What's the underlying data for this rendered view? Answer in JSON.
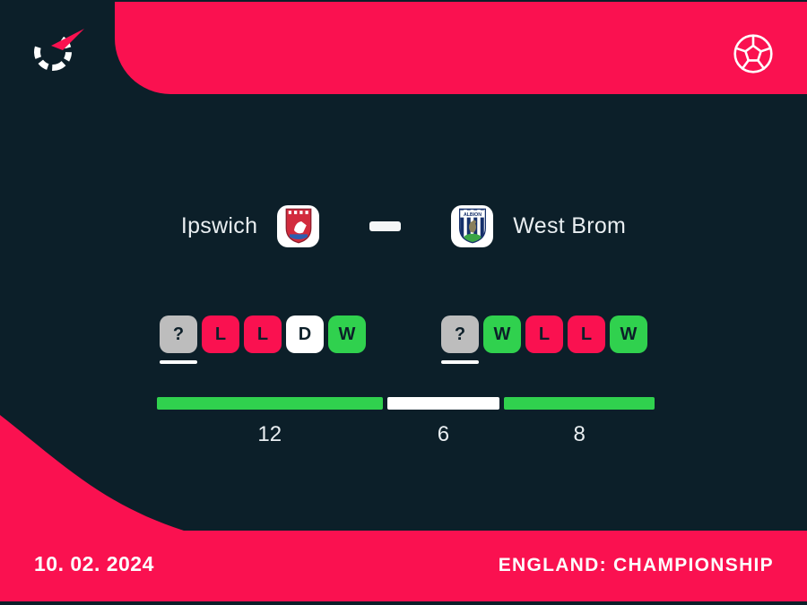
{
  "colors": {
    "pink": "#fa1150",
    "navy": "#0c1f29",
    "green": "#30d14e",
    "gray": "#bdbdbd",
    "white": "#ffffff"
  },
  "header": {
    "logo_icon": "flashscore-spinner-logo",
    "sport_icon": "football-ball"
  },
  "match": {
    "home_name": "Ipswich",
    "away_name": "West Brom"
  },
  "form": {
    "home": [
      {
        "label": "?",
        "result": "unknown",
        "upcoming": true
      },
      {
        "label": "L",
        "result": "loss"
      },
      {
        "label": "L",
        "result": "loss"
      },
      {
        "label": "D",
        "result": "draw"
      },
      {
        "label": "W",
        "result": "win"
      }
    ],
    "away": [
      {
        "label": "?",
        "result": "unknown",
        "upcoming": true
      },
      {
        "label": "W",
        "result": "win"
      },
      {
        "label": "L",
        "result": "loss"
      },
      {
        "label": "L",
        "result": "loss"
      },
      {
        "label": "W",
        "result": "win"
      }
    ]
  },
  "h2h": {
    "segments": [
      {
        "value": 12,
        "type": "win-home"
      },
      {
        "value": 6,
        "type": "draw"
      },
      {
        "value": 8,
        "type": "win-away"
      }
    ]
  },
  "footer": {
    "date": "10. 02. 2024",
    "league": "ENGLAND: CHAMPIONSHIP"
  }
}
